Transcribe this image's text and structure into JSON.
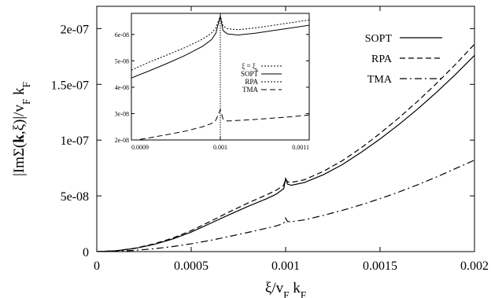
{
  "chart_data": [
    {
      "id": "main",
      "type": "line",
      "xlabel": "ξ/v_F k_F",
      "ylabel": "|ImΣ(k,ξ)|/v_F k_F",
      "xlim": [
        0,
        0.002
      ],
      "ylim": [
        0,
        2.2e-07
      ],
      "x_ticks": [
        "0",
        "0.0005",
        "0.001",
        "0.0015",
        "0.002"
      ],
      "y_ticks": [
        "0",
        "5e-08",
        "1e-07",
        "1.5e-07",
        "2e-07"
      ],
      "x_tick_values": [
        0,
        0.0005,
        0.001,
        0.0015,
        0.002
      ],
      "y_tick_values": [
        0,
        5e-08,
        1e-07,
        1.5e-07,
        2e-07
      ],
      "legend_position": "top-right",
      "series": [
        {
          "name": "SOPT",
          "style": "solid",
          "x": [
            0,
            0.0001,
            0.0002,
            0.0003,
            0.0004,
            0.0005,
            0.0006,
            0.0007,
            0.0008,
            0.0009,
            0.00095,
            0.00099,
            0.001,
            0.00101,
            0.00103,
            0.0011,
            0.0012,
            0.0013,
            0.0014,
            0.0015,
            0.0016,
            0.0017,
            0.0018,
            0.0019,
            0.002
          ],
          "y": [
            0,
            7e-10,
            2.8e-09,
            6.3e-09,
            1.12e-08,
            1.75e-08,
            2.52e-08,
            3.3e-08,
            4.05e-08,
            4.75e-08,
            5.15e-08,
            5.65e-08,
            6.55e-08,
            6.05e-08,
            5.95e-08,
            6.2e-08,
            6.9e-08,
            7.8e-08,
            8.9e-08,
            1.01e-07,
            1.14e-07,
            1.28e-07,
            1.43e-07,
            1.59e-07,
            1.76e-07
          ]
        },
        {
          "name": "RPA",
          "style": "dashed",
          "x": [
            0,
            0.0001,
            0.0002,
            0.0003,
            0.0004,
            0.0005,
            0.0006,
            0.0007,
            0.0008,
            0.0009,
            0.00095,
            0.00099,
            0.001,
            0.00101,
            0.00103,
            0.0011,
            0.0012,
            0.0013,
            0.0014,
            0.0015,
            0.0016,
            0.0017,
            0.0018,
            0.0019,
            0.002
          ],
          "y": [
            0,
            7.5e-10,
            3e-09,
            6.8e-09,
            1.2e-08,
            1.88e-08,
            2.7e-08,
            3.55e-08,
            4.35e-08,
            5.1e-08,
            5.5e-08,
            5.95e-08,
            6.55e-08,
            6.25e-08,
            6.2e-08,
            6.45e-08,
            7.2e-08,
            8.15e-08,
            9.3e-08,
            1.06e-07,
            1.2e-07,
            1.35e-07,
            1.51e-07,
            1.68e-07,
            1.86e-07
          ]
        },
        {
          "name": "TMA",
          "style": "dashdot",
          "x": [
            0,
            0.0001,
            0.0002,
            0.0003,
            0.0004,
            0.0005,
            0.0006,
            0.0007,
            0.0008,
            0.0009,
            0.00095,
            0.00099,
            0.001,
            0.00101,
            0.00103,
            0.0011,
            0.0012,
            0.0013,
            0.0014,
            0.0015,
            0.0016,
            0.0017,
            0.0018,
            0.0019,
            0.002
          ],
          "y": [
            0,
            3e-10,
            1.1e-09,
            2.5e-09,
            4.5e-09,
            7e-09,
            1e-08,
            1.35e-08,
            1.72e-08,
            2.1e-08,
            2.3e-08,
            2.55e-08,
            3e-08,
            2.7e-08,
            2.68e-08,
            2.85e-08,
            3.25e-08,
            3.7e-08,
            4.2e-08,
            4.75e-08,
            5.35e-08,
            6e-08,
            6.7e-08,
            7.45e-08,
            8.2e-08
          ]
        }
      ]
    },
    {
      "id": "inset",
      "type": "line",
      "xlim": [
        0.0009,
        0.0011
      ],
      "ylim": [
        2e-08,
        6.8e-08
      ],
      "x_ticks": [
        "0.0009",
        "0.001",
        "0.0011"
      ],
      "y_ticks": [
        "2e-08",
        "3e-08",
        "4e-08",
        "5e-08",
        "6e-08"
      ],
      "x_tick_values": [
        0.0009,
        0.001,
        0.0011
      ],
      "y_tick_values": [
        2e-08,
        3e-08,
        4e-08,
        5e-08,
        6e-08
      ],
      "legend_position": "middle-right",
      "vline": {
        "name": "ξ = ξ_k",
        "x": 0.001,
        "style": "dotted"
      },
      "series": [
        {
          "name": "SOPT",
          "style": "solid",
          "x": [
            0.0009,
            0.00092,
            0.00094,
            0.00096,
            0.00098,
            0.00099,
            0.000995,
            0.001,
            0.001003,
            0.001008,
            0.00102,
            0.00104,
            0.00106,
            0.00108,
            0.0011
          ],
          "y": [
            4.35e-08,
            4.62e-08,
            4.9e-08,
            5.2e-08,
            5.55e-08,
            5.8e-08,
            6.05e-08,
            6.7e-08,
            6.15e-08,
            6.02e-08,
            5.98e-08,
            6.05e-08,
            6.15e-08,
            6.25e-08,
            6.35e-08
          ]
        },
        {
          "name": "RPA",
          "style": "dotted",
          "x": [
            0.0009,
            0.00092,
            0.00094,
            0.00096,
            0.00098,
            0.00099,
            0.000995,
            0.001,
            0.001003,
            0.001008,
            0.00102,
            0.00104,
            0.00106,
            0.00108,
            0.0011
          ],
          "y": [
            4.65e-08,
            4.95e-08,
            5.22e-08,
            5.5e-08,
            5.82e-08,
            6.05e-08,
            6.25e-08,
            6.7e-08,
            6.32e-08,
            6.22e-08,
            6.18e-08,
            6.25e-08,
            6.35e-08,
            6.45e-08,
            6.55e-08
          ]
        },
        {
          "name": "TMA",
          "style": "dashed",
          "x": [
            0.0009,
            0.00092,
            0.00094,
            0.00096,
            0.00098,
            0.00099,
            0.000995,
            0.001,
            0.001003,
            0.001008,
            0.00102,
            0.00104,
            0.00106,
            0.00108,
            0.0011
          ],
          "y": [
            1.97e-08,
            2.08e-08,
            2.2e-08,
            2.33e-08,
            2.5e-08,
            2.62e-08,
            2.75e-08,
            3.15e-08,
            2.8e-08,
            2.72e-08,
            2.74e-08,
            2.78e-08,
            2.83e-08,
            2.88e-08,
            2.95e-08
          ]
        }
      ]
    }
  ]
}
